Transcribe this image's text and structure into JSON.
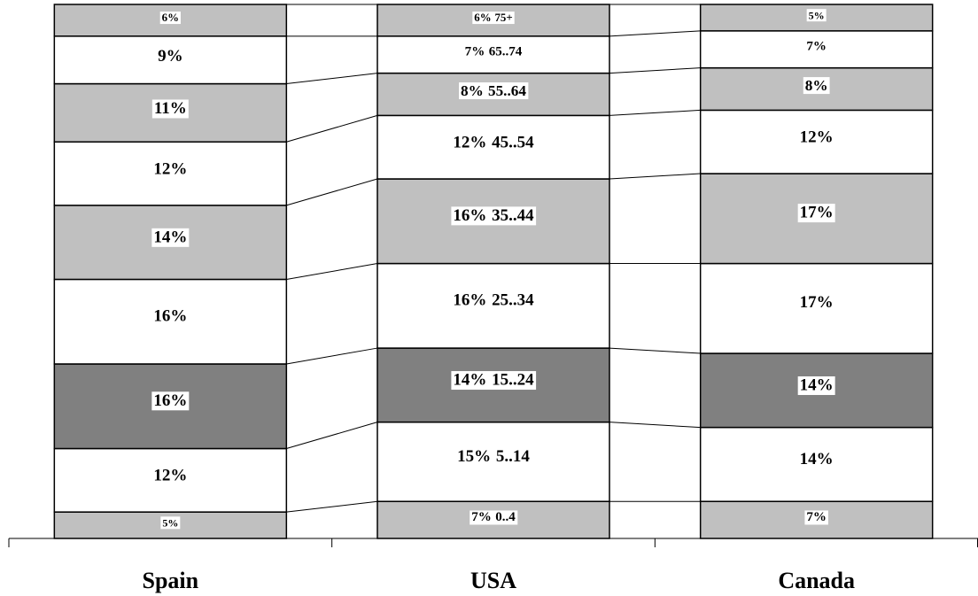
{
  "chart_data": {
    "type": "stacked-bar",
    "categories": [
      "Spain",
      "USA",
      "Canada"
    ],
    "name_labels_on": "USA",
    "series": [
      {
        "name": "0..4",
        "color": "#c0c0c0",
        "values": [
          5,
          7,
          7
        ],
        "value_labels": [
          "5%",
          "7%",
          "7%"
        ]
      },
      {
        "name": "5..14",
        "color": "#ffffff",
        "values": [
          12,
          15,
          14
        ],
        "value_labels": [
          "12%",
          "15%",
          "14%"
        ]
      },
      {
        "name": "15..24",
        "color": "#808080",
        "values": [
          16,
          14,
          14
        ],
        "value_labels": [
          "16%",
          "14%",
          "14%"
        ]
      },
      {
        "name": "25..34",
        "color": "#ffffff",
        "values": [
          16,
          16,
          17
        ],
        "value_labels": [
          "16%",
          "16%",
          "17%"
        ]
      },
      {
        "name": "35..44",
        "color": "#c0c0c0",
        "values": [
          14,
          16,
          17
        ],
        "value_labels": [
          "14%",
          "16%",
          "17%"
        ]
      },
      {
        "name": "45..54",
        "color": "#ffffff",
        "values": [
          12,
          12,
          12
        ],
        "value_labels": [
          "12%",
          "12%",
          "12%"
        ]
      },
      {
        "name": "55..64",
        "color": "#c0c0c0",
        "values": [
          11,
          8,
          8
        ],
        "value_labels": [
          "11%",
          "8%",
          "8%"
        ]
      },
      {
        "name": "65..74",
        "color": "#ffffff",
        "values": [
          9,
          7,
          7
        ],
        "value_labels": [
          "9%",
          "7%",
          "7%"
        ]
      },
      {
        "name": "75+",
        "color": "#c0c0c0",
        "values": [
          6,
          6,
          5
        ],
        "value_labels": [
          "6%",
          "6%",
          "5%"
        ]
      }
    ]
  }
}
